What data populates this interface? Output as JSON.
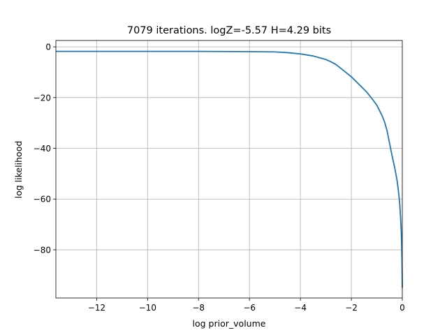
{
  "chart_data": {
    "type": "line",
    "title": "7079 iterations. logZ=-5.57 H=4.29 bits",
    "xlabel": "log prior_volume",
    "ylabel": "log likelihood",
    "xlim": [
      -13.6,
      0.0
    ],
    "ylim": [
      -99.0,
      2.5
    ],
    "grid": true,
    "x_ticks": [
      -12,
      -10,
      -8,
      -6,
      -4,
      -2,
      0
    ],
    "x_tick_labels": [
      "−12",
      "−10",
      "−8",
      "−6",
      "−4",
      "−2",
      "0"
    ],
    "y_ticks": [
      0,
      -20,
      -40,
      -60,
      -80
    ],
    "y_tick_labels": [
      "0",
      "−20",
      "−40",
      "−60",
      "−80"
    ],
    "series": [
      {
        "color": "#1f77b4",
        "x": [
          -13.6,
          -12.0,
          -10.0,
          -8.0,
          -6.0,
          -5.0,
          -4.5,
          -4.0,
          -3.5,
          -3.0,
          -2.8,
          -2.6,
          -2.4,
          -2.2,
          -2.0,
          -1.8,
          -1.6,
          -1.4,
          -1.2,
          -1.0,
          -0.8,
          -0.7,
          -0.6,
          -0.5,
          -0.4,
          -0.3,
          -0.2,
          -0.15,
          -0.1,
          -0.07,
          -0.04,
          -0.02,
          -0.01,
          0.0
        ],
        "y": [
          -1.8,
          -1.8,
          -1.8,
          -1.8,
          -1.9,
          -2.0,
          -2.3,
          -2.8,
          -3.6,
          -5.0,
          -5.9,
          -7.0,
          -8.6,
          -10.2,
          -11.8,
          -13.8,
          -15.8,
          -17.8,
          -20.3,
          -23.0,
          -27.0,
          -29.5,
          -33.0,
          -38.0,
          -43.0,
          -47.5,
          -53.0,
          -57.0,
          -62.0,
          -67.0,
          -73.0,
          -80.0,
          -86.0,
          -95.0
        ]
      }
    ]
  }
}
